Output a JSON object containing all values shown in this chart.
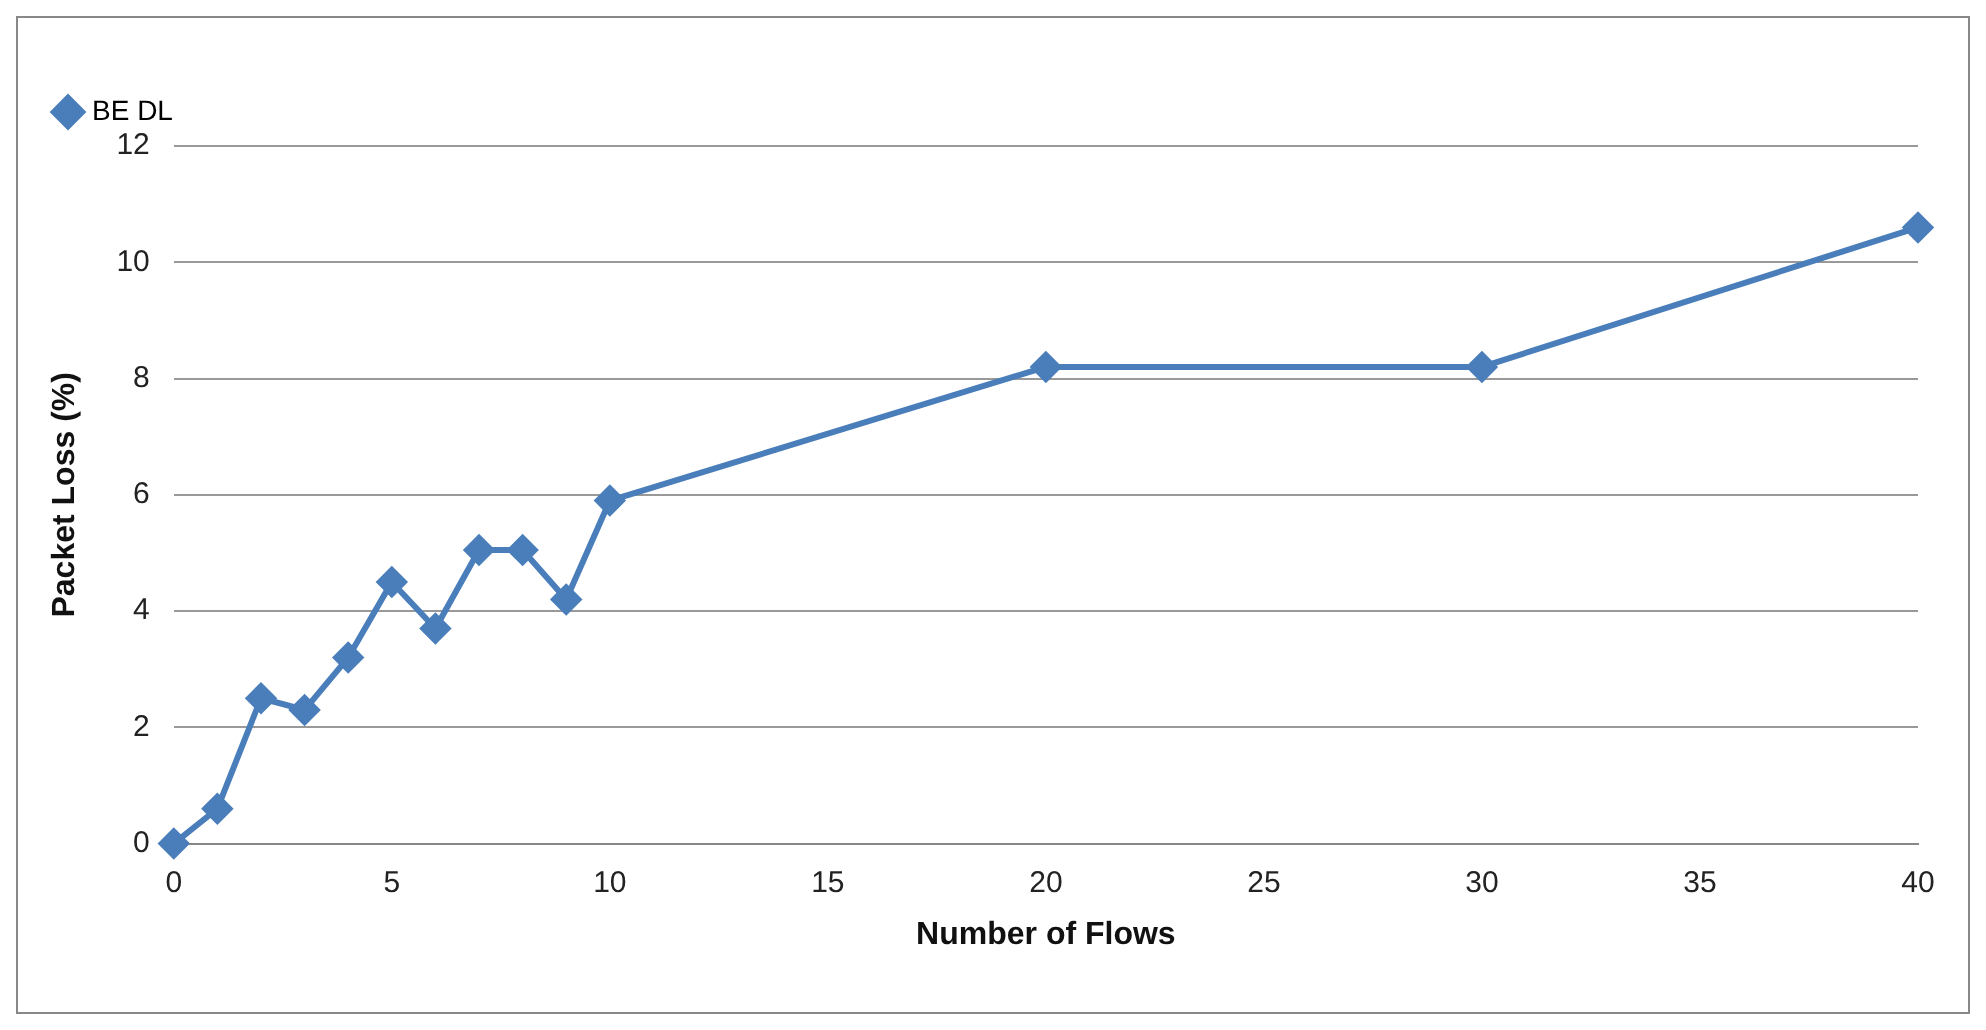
{
  "chart_data": {
    "type": "line",
    "xlabel": "Number of Flows",
    "ylabel": "Packet Loss (%)",
    "x": [
      0,
      1,
      2,
      3,
      4,
      5,
      6,
      7,
      8,
      9,
      10,
      20,
      30,
      40
    ],
    "series": [
      {
        "name": "BE DL",
        "color": "#4a7ebb",
        "values": [
          0,
          0.6,
          2.5,
          2.3,
          3.2,
          4.5,
          3.7,
          5.05,
          5.05,
          4.2,
          5.9,
          8.2,
          8.2,
          10.6
        ]
      }
    ],
    "xlim": [
      0,
      40
    ],
    "xticks": [
      0,
      5,
      10,
      15,
      20,
      25,
      30,
      35,
      40
    ],
    "ylim": [
      0,
      12
    ],
    "yticks": [
      0,
      2,
      4,
      6,
      8,
      10,
      12
    ],
    "grid": "y",
    "legend": "top left",
    "marker": "diamond",
    "line_style": "solid"
  }
}
